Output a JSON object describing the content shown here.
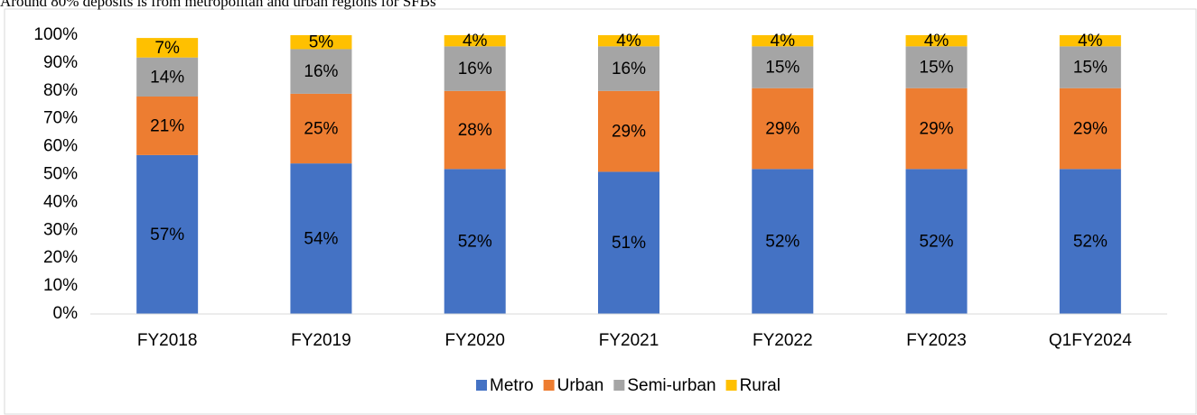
{
  "chart_data": {
    "type": "bar",
    "stacked": true,
    "title": "Around 80% deposits is from metropolitan and urban regions for SFBs",
    "categories": [
      "FY2018",
      "FY2019",
      "FY2020",
      "FY2021",
      "FY2022",
      "FY2023",
      "Q1FY2024"
    ],
    "series": [
      {
        "name": "Metro",
        "color": "#4472c4",
        "values": [
          57,
          54,
          52,
          51,
          52,
          52,
          52
        ],
        "value_labels": [
          "57%",
          "54%",
          "52%",
          "51%",
          "52%",
          "52%",
          "52%"
        ]
      },
      {
        "name": "Urban",
        "color": "#ed7d31",
        "values": [
          21,
          25,
          28,
          29,
          29,
          29,
          29
        ],
        "value_labels": [
          "21%",
          "25%",
          "28%",
          "29%",
          "29%",
          "29%",
          "29%"
        ]
      },
      {
        "name": "Semi-urban",
        "color": "#a5a5a5",
        "values": [
          14,
          16,
          16,
          16,
          15,
          15,
          15
        ],
        "value_labels": [
          "14%",
          "16%",
          "16%",
          "16%",
          "15%",
          "15%",
          "15%"
        ]
      },
      {
        "name": "Rural",
        "color": "#ffc000",
        "values": [
          7,
          5,
          4,
          4,
          4,
          4,
          4
        ],
        "value_labels": [
          "7%",
          "5%",
          "4%",
          "4%",
          "4%",
          "4%",
          "4%"
        ]
      }
    ],
    "ylim": [
      0,
      100
    ],
    "yticks": [
      {
        "value": 0,
        "label": "0%"
      },
      {
        "value": 10,
        "label": "10%"
      },
      {
        "value": 20,
        "label": "20%"
      },
      {
        "value": 30,
        "label": "30%"
      },
      {
        "value": 40,
        "label": "40%"
      },
      {
        "value": 50,
        "label": "50%"
      },
      {
        "value": 60,
        "label": "60%"
      },
      {
        "value": 70,
        "label": "70%"
      },
      {
        "value": 80,
        "label": "80%"
      },
      {
        "value": 90,
        "label": "90%"
      },
      {
        "value": 100,
        "label": "100%"
      }
    ],
    "grid": false,
    "legend": "bottom"
  }
}
